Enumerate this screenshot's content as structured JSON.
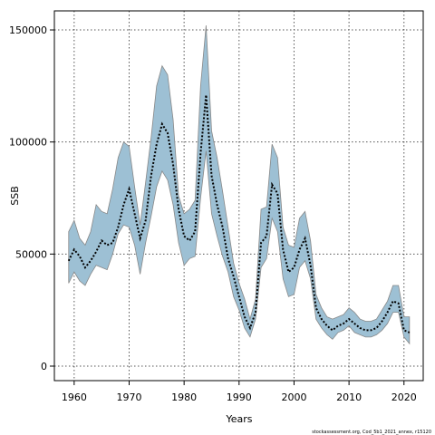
{
  "chart_data": {
    "type": "band-line",
    "x_label": "Years",
    "y_label": "SSB",
    "footer": "stockassessment.org, Cod_5b1_2021_annex, r15120",
    "x": [
      1959,
      1960,
      1961,
      1962,
      1963,
      1964,
      1965,
      1966,
      1967,
      1968,
      1969,
      1970,
      1971,
      1972,
      1973,
      1974,
      1975,
      1976,
      1977,
      1978,
      1979,
      1980,
      1981,
      1982,
      1983,
      1984,
      1985,
      1986,
      1987,
      1988,
      1989,
      1990,
      1991,
      1992,
      1993,
      1994,
      1995,
      1996,
      1997,
      1998,
      1999,
      2000,
      2001,
      2002,
      2003,
      2004,
      2005,
      2006,
      2007,
      2008,
      2009,
      2010,
      2011,
      2012,
      2013,
      2014,
      2015,
      2016,
      2017,
      2018,
      2019,
      2020,
      2021
    ],
    "series": [
      {
        "name": "SSB",
        "color": "#000000",
        "values": [
          47000,
          52000,
          49000,
          44000,
          47000,
          51000,
          56000,
          54000,
          55000,
          62000,
          72000,
          79000,
          68000,
          57000,
          65000,
          85000,
          99000,
          108000,
          104000,
          90000,
          70000,
          58000,
          56000,
          60000,
          95000,
          121000,
          85000,
          72000,
          62000,
          48000,
          40000,
          31000,
          22000,
          17000,
          24000,
          55000,
          58000,
          81000,
          77000,
          52000,
          42000,
          44000,
          52000,
          57000,
          45000,
          26000,
          21000,
          18000,
          16000,
          18000,
          19000,
          21000,
          19000,
          17000,
          16000,
          16000,
          17000,
          20000,
          24000,
          29000,
          28000,
          16000,
          15000
        ]
      },
      {
        "name": "upper",
        "color": "#9dc0d4",
        "values": [
          60000,
          65000,
          57000,
          54000,
          60000,
          72000,
          69000,
          68000,
          79000,
          93000,
          100000,
          98000,
          80000,
          63000,
          82000,
          102000,
          125000,
          134000,
          130000,
          110000,
          76000,
          68000,
          70000,
          74000,
          125000,
          152000,
          105000,
          93000,
          78000,
          62000,
          46000,
          37000,
          30000,
          21000,
          30000,
          70000,
          71000,
          99000,
          93000,
          62000,
          54000,
          53000,
          66000,
          69000,
          56000,
          32000,
          26000,
          22000,
          21000,
          22000,
          23000,
          26000,
          24000,
          21000,
          20000,
          20000,
          21000,
          25000,
          29000,
          36000,
          36000,
          22000,
          22000
        ]
      },
      {
        "name": "lower",
        "color": "#9dc0d4",
        "values": [
          37000,
          42000,
          38000,
          36000,
          41000,
          45000,
          44000,
          43000,
          50000,
          59000,
          63000,
          62000,
          54000,
          41000,
          55000,
          67000,
          80000,
          87000,
          83000,
          72000,
          55000,
          45000,
          48000,
          49000,
          75000,
          96000,
          68000,
          58000,
          49000,
          42000,
          31000,
          25000,
          17000,
          13000,
          21000,
          44000,
          48000,
          66000,
          60000,
          39000,
          31000,
          32000,
          44000,
          47000,
          39000,
          21000,
          17000,
          14000,
          12000,
          15000,
          16000,
          18000,
          15000,
          14000,
          13000,
          13000,
          14000,
          16000,
          19000,
          24000,
          24000,
          13000,
          10000
        ]
      }
    ],
    "xlim": [
      1956.4,
      2023.5
    ],
    "ylim": [
      -6470,
      158500
    ],
    "xticks": [
      1960,
      1970,
      1980,
      1990,
      2000,
      2010,
      2020
    ],
    "yticks": [
      0,
      50000,
      100000,
      150000
    ],
    "grid": true
  }
}
